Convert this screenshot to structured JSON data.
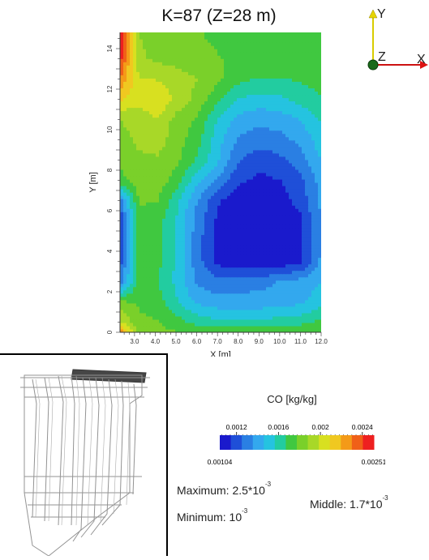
{
  "title": "K=87 (Z=28 m)",
  "chart_data": {
    "type": "heatmap",
    "title": "K=87 (Z=28 m)",
    "xlabel": "X [m]",
    "ylabel": "Y [m]",
    "xlim": [
      2.3,
      12.0
    ],
    "ylim": [
      0,
      14.8
    ],
    "x_ticks": [
      "3.0",
      "4.0",
      "5.0",
      "6.0",
      "7.0",
      "8.0",
      "9.0",
      "10.0",
      "11.0",
      "12.0"
    ],
    "y_ticks": [
      "0",
      "2",
      "4",
      "6",
      "8",
      "10",
      "12",
      "14"
    ],
    "x_grid": [
      2.3,
      3.2,
      4.1,
      5.0,
      6.0,
      7.0,
      8.0,
      9.0,
      10.0,
      11.0,
      12.0
    ],
    "y_grid": [
      0.0,
      0.5,
      1.5,
      2.5,
      3.5,
      4.5,
      5.5,
      6.5,
      7.5,
      8.5,
      9.5,
      10.5,
      11.5,
      12.5,
      13.5,
      14.8
    ],
    "z_units": "CO concentration x 1e-3 kg/kg",
    "z": [
      [
        2.3,
        1.85,
        1.82,
        1.78,
        1.78,
        1.78,
        1.78,
        1.78,
        1.78,
        1.78,
        1.78
      ],
      [
        2.0,
        1.8,
        1.78,
        1.72,
        1.64,
        1.6,
        1.6,
        1.6,
        1.62,
        1.64,
        1.7
      ],
      [
        1.8,
        1.76,
        1.72,
        1.58,
        1.44,
        1.4,
        1.4,
        1.4,
        1.4,
        1.44,
        1.52
      ],
      [
        1.3,
        1.72,
        1.68,
        1.54,
        1.34,
        1.28,
        1.3,
        1.32,
        1.36,
        1.4,
        1.46
      ],
      [
        1.2,
        1.72,
        1.7,
        1.55,
        1.3,
        1.12,
        1.06,
        1.05,
        1.07,
        1.12,
        1.38
      ],
      [
        1.12,
        1.74,
        1.7,
        1.55,
        1.3,
        1.1,
        1.05,
        1.04,
        1.05,
        1.12,
        1.36
      ],
      [
        1.12,
        1.76,
        1.72,
        1.56,
        1.32,
        1.12,
        1.06,
        1.05,
        1.06,
        1.12,
        1.36
      ],
      [
        1.3,
        1.78,
        1.78,
        1.6,
        1.36,
        1.16,
        1.08,
        1.07,
        1.1,
        1.18,
        1.38
      ],
      [
        1.74,
        1.82,
        1.84,
        1.72,
        1.5,
        1.34,
        1.16,
        1.12,
        1.14,
        1.22,
        1.4
      ],
      [
        1.8,
        1.86,
        1.86,
        1.8,
        1.66,
        1.48,
        1.26,
        1.18,
        1.22,
        1.3,
        1.46
      ],
      [
        1.84,
        1.9,
        1.94,
        1.82,
        1.72,
        1.5,
        1.34,
        1.3,
        1.32,
        1.38,
        1.52
      ],
      [
        1.88,
        1.92,
        1.98,
        1.84,
        1.76,
        1.56,
        1.42,
        1.38,
        1.4,
        1.46,
        1.58
      ],
      [
        2.1,
        2.02,
        2.08,
        1.96,
        1.84,
        1.7,
        1.56,
        1.52,
        1.54,
        1.6,
        1.66
      ],
      [
        2.3,
        2.0,
        1.98,
        1.94,
        1.88,
        1.8,
        1.7,
        1.66,
        1.66,
        1.68,
        1.72
      ],
      [
        2.45,
        1.9,
        1.86,
        1.84,
        1.8,
        1.78,
        1.76,
        1.74,
        1.74,
        1.74,
        1.76
      ],
      [
        2.51,
        1.88,
        1.84,
        1.82,
        1.78,
        1.76,
        1.74,
        1.72,
        1.72,
        1.72,
        1.74
      ]
    ]
  },
  "axes_triad": {
    "y_label": "Y",
    "z_label": "Z",
    "x_label": "X"
  },
  "colorbar": {
    "title": "CO [kg/kg]",
    "top_ticks": [
      "0.0012",
      "0.0016",
      "0.002",
      "0.0024"
    ],
    "top_tick_values": [
      0.0012,
      0.0016,
      0.002,
      0.0024
    ],
    "min_label": "0.00104",
    "max_label": "0.00251",
    "min": 0.00104,
    "max": 0.00251,
    "colors": [
      "#1a1acc",
      "#1f4fd8",
      "#2a7fe3",
      "#33a8ee",
      "#25c3e0",
      "#22cca0",
      "#40c840",
      "#7ad02a",
      "#a8d828",
      "#d8e020",
      "#f0c820",
      "#f49a18",
      "#f06018",
      "#ee2020"
    ]
  },
  "stats": {
    "maximum_label": "Maximum: 2.5*10",
    "maximum_exp": "-3",
    "middle_label": "Middle: 1.7*10",
    "middle_exp": "-3",
    "minimum_label": "Minimum: 10",
    "minimum_exp": "-3"
  }
}
